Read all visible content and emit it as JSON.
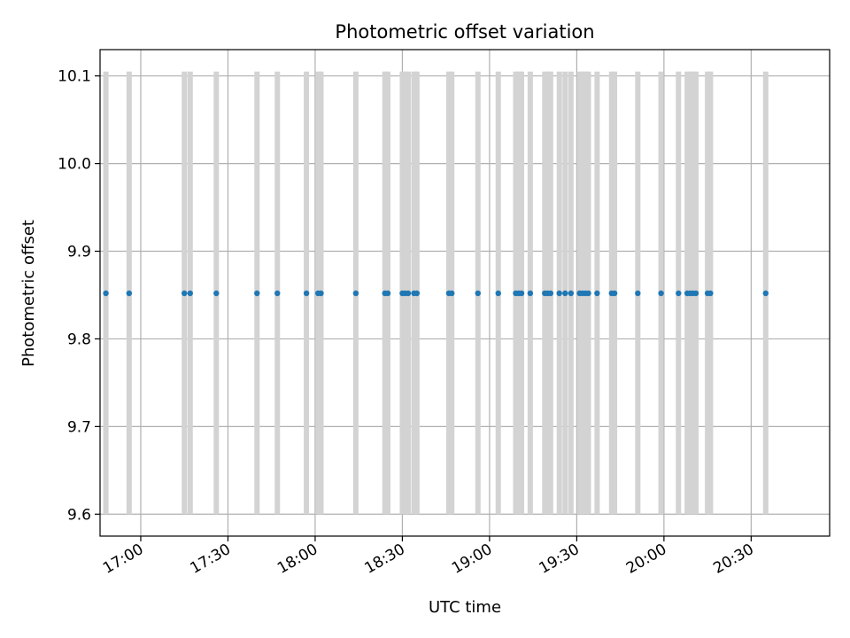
{
  "chart_data": {
    "type": "scatter",
    "title": "Photometric offset variation",
    "xlabel": "UTC time",
    "ylabel": "Photometric offset",
    "xlim": [
      "16:46",
      "20:57"
    ],
    "ylim": [
      9.575,
      10.13
    ],
    "x_ticks": [
      "17:00",
      "17:30",
      "18:00",
      "18:30",
      "19:00",
      "19:30",
      "20:00",
      "20:30"
    ],
    "y_ticks": [
      "9.6",
      "9.7",
      "9.8",
      "9.9",
      "10.0",
      "10.1"
    ],
    "grid": true,
    "marker_color": "#1f77b4",
    "range_bar_color": "#d3d3d3",
    "range_bar_y": [
      9.6,
      10.105
    ],
    "x": [
      "16:48",
      "16:56",
      "17:15",
      "17:17",
      "17:26",
      "17:40",
      "17:47",
      "17:57",
      "18:01",
      "18:02",
      "18:14",
      "18:24",
      "18:25",
      "18:30",
      "18:31",
      "18:32",
      "18:34",
      "18:35",
      "18:46",
      "18:47",
      "18:56",
      "19:03",
      "19:09",
      "19:10",
      "19:11",
      "19:14",
      "19:19",
      "19:20",
      "19:21",
      "19:24",
      "19:26",
      "19:28",
      "19:31",
      "19:32",
      "19:33",
      "19:34",
      "19:37",
      "19:42",
      "19:43",
      "19:51",
      "19:59",
      "20:05",
      "20:08",
      "20:09",
      "20:10",
      "20:11",
      "20:15",
      "20:16",
      "20:35"
    ],
    "y": [
      9.852,
      9.852,
      9.852,
      9.852,
      9.852,
      9.852,
      9.852,
      9.852,
      9.852,
      9.852,
      9.852,
      9.852,
      9.852,
      9.852,
      9.852,
      9.852,
      9.852,
      9.852,
      9.852,
      9.852,
      9.852,
      9.852,
      9.852,
      9.852,
      9.852,
      9.852,
      9.852,
      9.852,
      9.852,
      9.852,
      9.852,
      9.852,
      9.852,
      9.852,
      9.852,
      9.852,
      9.852,
      9.852,
      9.852,
      9.852,
      9.852,
      9.852,
      9.852,
      9.852,
      9.852,
      9.852,
      9.852,
      9.852,
      9.852
    ]
  }
}
